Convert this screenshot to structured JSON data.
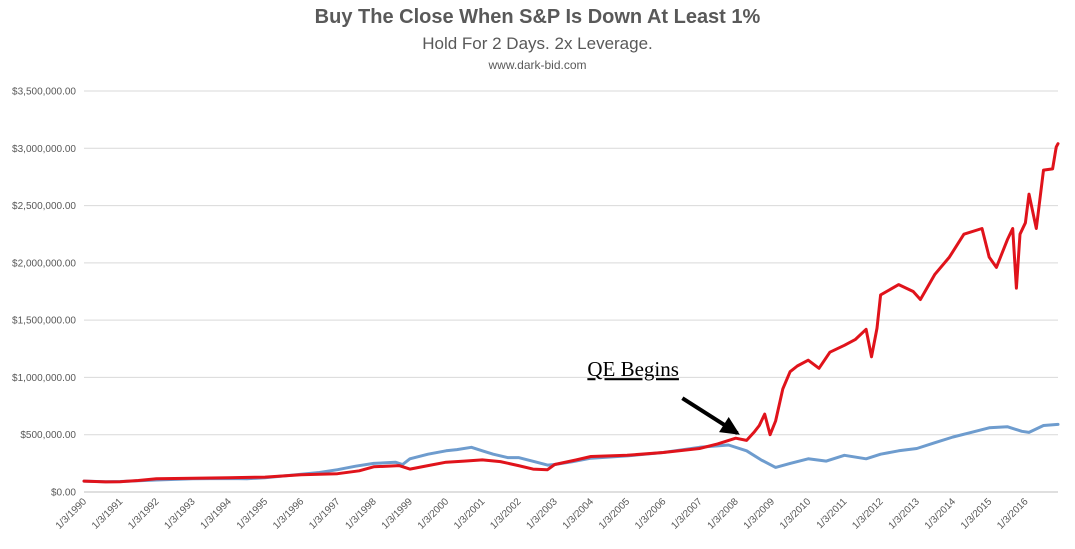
{
  "chart_data": {
    "type": "line",
    "title": "Buy The Close When S&P Is Down At Least 1%",
    "subtitle": "Hold For 2 Days. 2x Leverage.",
    "source": "www.dark-bid.com",
    "ylim": [
      0,
      3500000
    ],
    "yticks": [
      "$0.00",
      "$500,000.00",
      "$1,000,000.00",
      "$1,500,000.00",
      "$2,000,000.00",
      "$2,500,000.00",
      "$3,000,000.00",
      "$3,500,000.00"
    ],
    "ytick_values": [
      0,
      500000,
      1000000,
      1500000,
      2000000,
      2500000,
      3000000,
      3500000
    ],
    "xticks": [
      "1/3/1990",
      "1/3/1991",
      "1/3/1992",
      "1/3/1993",
      "1/3/1994",
      "1/3/1995",
      "1/3/1996",
      "1/3/1997",
      "1/3/1998",
      "1/3/1999",
      "1/3/2000",
      "1/3/2001",
      "1/3/2002",
      "1/3/2003",
      "1/3/2004",
      "1/3/2005",
      "1/3/2006",
      "1/3/2007",
      "1/3/2008",
      "1/3/2009",
      "1/3/2010",
      "1/3/2011",
      "1/3/2012",
      "1/3/2013",
      "1/3/2014",
      "1/3/2015",
      "1/3/2016"
    ],
    "xrange": [
      1990.0,
      2016.9
    ],
    "grid": true,
    "annotation": {
      "text": "QE Begins",
      "year": 2008.1,
      "value": 470000
    },
    "series": [
      {
        "color": "#6e9cce",
        "points": [
          [
            1990.0,
            95000
          ],
          [
            1990.6,
            90000
          ],
          [
            1991.0,
            92000
          ],
          [
            1991.5,
            98000
          ],
          [
            1992.0,
            105000
          ],
          [
            1993.0,
            115000
          ],
          [
            1994.0,
            118000
          ],
          [
            1994.5,
            115000
          ],
          [
            1995.0,
            125000
          ],
          [
            1995.5,
            140000
          ],
          [
            1996.0,
            155000
          ],
          [
            1996.5,
            170000
          ],
          [
            1997.0,
            195000
          ],
          [
            1997.5,
            225000
          ],
          [
            1998.0,
            250000
          ],
          [
            1998.6,
            260000
          ],
          [
            1998.8,
            240000
          ],
          [
            1999.0,
            290000
          ],
          [
            1999.5,
            330000
          ],
          [
            2000.0,
            360000
          ],
          [
            2000.3,
            370000
          ],
          [
            2000.7,
            390000
          ],
          [
            2001.0,
            360000
          ],
          [
            2001.3,
            330000
          ],
          [
            2001.7,
            300000
          ],
          [
            2002.0,
            300000
          ],
          [
            2002.5,
            260000
          ],
          [
            2002.8,
            235000
          ],
          [
            2003.0,
            240000
          ],
          [
            2003.5,
            265000
          ],
          [
            2004.0,
            295000
          ],
          [
            2005.0,
            315000
          ],
          [
            2006.0,
            345000
          ],
          [
            2007.0,
            390000
          ],
          [
            2007.8,
            410000
          ],
          [
            2008.3,
            360000
          ],
          [
            2008.7,
            280000
          ],
          [
            2009.1,
            215000
          ],
          [
            2009.5,
            250000
          ],
          [
            2010.0,
            290000
          ],
          [
            2010.5,
            270000
          ],
          [
            2011.0,
            320000
          ],
          [
            2011.6,
            290000
          ],
          [
            2012.0,
            330000
          ],
          [
            2012.5,
            360000
          ],
          [
            2013.0,
            380000
          ],
          [
            2013.5,
            430000
          ],
          [
            2014.0,
            480000
          ],
          [
            2014.5,
            520000
          ],
          [
            2015.0,
            560000
          ],
          [
            2015.5,
            570000
          ],
          [
            2015.9,
            530000
          ],
          [
            2016.1,
            520000
          ],
          [
            2016.5,
            580000
          ],
          [
            2016.9,
            590000
          ]
        ]
      },
      {
        "color": "#e0131b",
        "points": [
          [
            1990.0,
            95000
          ],
          [
            1990.6,
            88000
          ],
          [
            1991.0,
            90000
          ],
          [
            1991.5,
            100000
          ],
          [
            1992.0,
            115000
          ],
          [
            1993.0,
            120000
          ],
          [
            1994.0,
            125000
          ],
          [
            1995.0,
            130000
          ],
          [
            1996.0,
            150000
          ],
          [
            1997.0,
            160000
          ],
          [
            1997.6,
            185000
          ],
          [
            1998.0,
            220000
          ],
          [
            1998.7,
            230000
          ],
          [
            1999.0,
            200000
          ],
          [
            1999.5,
            230000
          ],
          [
            2000.0,
            260000
          ],
          [
            2000.5,
            270000
          ],
          [
            2001.0,
            280000
          ],
          [
            2001.5,
            265000
          ],
          [
            2002.0,
            230000
          ],
          [
            2002.4,
            200000
          ],
          [
            2002.8,
            195000
          ],
          [
            2003.0,
            240000
          ],
          [
            2003.6,
            280000
          ],
          [
            2004.0,
            310000
          ],
          [
            2005.0,
            320000
          ],
          [
            2006.0,
            345000
          ],
          [
            2007.0,
            380000
          ],
          [
            2007.5,
            420000
          ],
          [
            2008.0,
            470000
          ],
          [
            2008.3,
            450000
          ],
          [
            2008.5,
            520000
          ],
          [
            2008.65,
            580000
          ],
          [
            2008.8,
            680000
          ],
          [
            2008.95,
            500000
          ],
          [
            2009.1,
            620000
          ],
          [
            2009.3,
            900000
          ],
          [
            2009.5,
            1050000
          ],
          [
            2009.7,
            1100000
          ],
          [
            2010.0,
            1150000
          ],
          [
            2010.3,
            1080000
          ],
          [
            2010.6,
            1220000
          ],
          [
            2011.0,
            1280000
          ],
          [
            2011.3,
            1330000
          ],
          [
            2011.6,
            1420000
          ],
          [
            2011.75,
            1180000
          ],
          [
            2011.9,
            1430000
          ],
          [
            2012.0,
            1720000
          ],
          [
            2012.5,
            1810000
          ],
          [
            2012.9,
            1750000
          ],
          [
            2013.1,
            1680000
          ],
          [
            2013.5,
            1900000
          ],
          [
            2013.9,
            2050000
          ],
          [
            2014.3,
            2250000
          ],
          [
            2014.8,
            2300000
          ],
          [
            2015.0,
            2050000
          ],
          [
            2015.2,
            1960000
          ],
          [
            2015.5,
            2200000
          ],
          [
            2015.65,
            2300000
          ],
          [
            2015.75,
            1780000
          ],
          [
            2015.85,
            2250000
          ],
          [
            2016.0,
            2350000
          ],
          [
            2016.1,
            2600000
          ],
          [
            2016.3,
            2300000
          ],
          [
            2016.5,
            2810000
          ],
          [
            2016.75,
            2820000
          ],
          [
            2016.85,
            3010000
          ],
          [
            2016.9,
            3040000
          ]
        ]
      }
    ]
  }
}
